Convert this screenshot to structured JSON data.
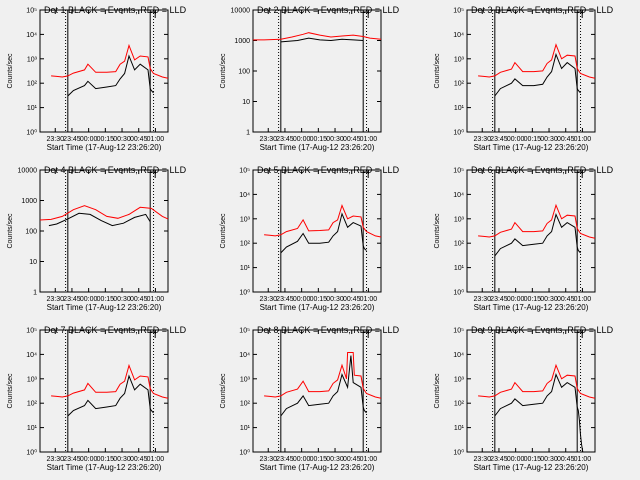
{
  "figure": {
    "background": "#f0f0f0",
    "x_tick_labels": [
      "23:30",
      "23:45",
      "00:00",
      "00:15",
      "00:30",
      "00:45",
      "01:00"
    ],
    "x_label": "Start Time (17-Aug-12 23:26:20)",
    "y_label": "Counts/sec",
    "series_colors": {
      "events": "#000000",
      "lld": "#ff0000"
    }
  },
  "chart_data": [
    {
      "type": "line",
      "title": "Det 1 BLACK = Events, RED = LLD",
      "yscale": "log",
      "ylim": [
        1,
        100000
      ],
      "y_tick_labels": [
        "10⁰",
        "10¹",
        "10²",
        "10³",
        "10⁴",
        "10⁵"
      ],
      "x_range_minutes": [
        -10,
        105
      ],
      "vlines_solid": [
        15,
        89
      ],
      "vlines_dotted": [
        13,
        92
      ],
      "series": [
        {
          "key": "events",
          "x": [
            15,
            20,
            30,
            33,
            40,
            50,
            58,
            62,
            66,
            70,
            75,
            80,
            87,
            89,
            90,
            92
          ],
          "y": [
            30,
            50,
            80,
            120,
            60,
            70,
            80,
            150,
            250,
            1300,
            350,
            600,
            350,
            60,
            50,
            40
          ]
        },
        {
          "key": "lld",
          "x": [
            0,
            5,
            10,
            15,
            20,
            30,
            33,
            40,
            50,
            58,
            62,
            66,
            70,
            75,
            80,
            87,
            89,
            92,
            100,
            105
          ],
          "y": [
            200,
            190,
            180,
            200,
            260,
            350,
            600,
            280,
            280,
            300,
            600,
            800,
            3500,
            900,
            1300,
            1200,
            400,
            250,
            180,
            160
          ]
        }
      ]
    },
    {
      "type": "line",
      "title": "Det 2 BLACK = Events, RED = LLD",
      "yscale": "log",
      "ylim": [
        1,
        10000
      ],
      "y_tick_labels": [
        "1",
        "10",
        "100",
        "1000",
        "10000"
      ],
      "x_range_minutes": [
        -10,
        105
      ],
      "vlines_solid": [
        15,
        89
      ],
      "vlines_dotted": [
        13,
        92
      ],
      "series": [
        {
          "key": "events",
          "x": [
            15,
            30,
            40,
            50,
            60,
            70,
            80,
            89
          ],
          "y": [
            900,
            1000,
            1200,
            1050,
            1000,
            1100,
            1050,
            1000
          ]
        },
        {
          "key": "lld",
          "x": [
            -10,
            0,
            15,
            25,
            35,
            40,
            50,
            60,
            70,
            80,
            89,
            95,
            105
          ],
          "y": [
            1050,
            1050,
            1100,
            1300,
            1600,
            1800,
            1500,
            1300,
            1400,
            1500,
            1350,
            1200,
            1100
          ]
        }
      ]
    },
    {
      "type": "line",
      "title": "Det 3 BLACK = Events, RED = LLD",
      "yscale": "log",
      "ylim": [
        1,
        100000
      ],
      "y_tick_labels": [
        "10⁰",
        "10¹",
        "10²",
        "10³",
        "10⁴",
        "10⁵"
      ],
      "x_range_minutes": [
        -10,
        105
      ],
      "vlines_solid": [
        15,
        89
      ],
      "vlines_dotted": [
        13,
        92
      ],
      "series": [
        {
          "key": "events",
          "x": [
            15,
            20,
            30,
            33,
            40,
            50,
            58,
            62,
            66,
            70,
            75,
            80,
            87,
            89,
            90,
            92
          ],
          "y": [
            30,
            60,
            100,
            150,
            80,
            80,
            90,
            180,
            300,
            1500,
            400,
            700,
            400,
            60,
            50,
            40
          ]
        },
        {
          "key": "lld",
          "x": [
            0,
            5,
            10,
            15,
            20,
            30,
            33,
            40,
            50,
            58,
            62,
            66,
            70,
            75,
            80,
            87,
            89,
            92,
            100,
            105
          ],
          "y": [
            200,
            190,
            180,
            200,
            280,
            380,
            700,
            300,
            300,
            320,
            650,
            900,
            3800,
            1000,
            1400,
            1300,
            400,
            250,
            180,
            160
          ]
        }
      ]
    },
    {
      "type": "line",
      "title": "Det 4 BLACK = Events, RED = LLD",
      "yscale": "log",
      "ylim": [
        1,
        10000
      ],
      "y_tick_labels": [
        "1",
        "10",
        "100",
        "1000",
        "10000"
      ],
      "x_range_minutes": [
        -10,
        105
      ],
      "vlines_solid": [
        15,
        89
      ],
      "vlines_dotted": [
        13,
        92
      ],
      "series": [
        {
          "key": "events",
          "x": [
            -2,
            5,
            15,
            25,
            35,
            45,
            55,
            65,
            75,
            85,
            89
          ],
          "y": [
            150,
            170,
            250,
            380,
            350,
            220,
            150,
            180,
            280,
            350,
            200
          ]
        },
        {
          "key": "lld",
          "x": [
            -10,
            0,
            10,
            20,
            30,
            40,
            50,
            60,
            70,
            80,
            90,
            100,
            105
          ],
          "y": [
            230,
            240,
            300,
            500,
            680,
            500,
            300,
            260,
            350,
            600,
            550,
            300,
            250
          ]
        }
      ]
    },
    {
      "type": "line",
      "title": "Det 5 BLACK = Events, RED = LLD",
      "yscale": "log",
      "ylim": [
        1,
        100000
      ],
      "y_tick_labels": [
        "10⁰",
        "10¹",
        "10²",
        "10³",
        "10⁴",
        "10⁵"
      ],
      "x_range_minutes": [
        -10,
        105
      ],
      "vlines_solid": [
        15,
        89
      ],
      "vlines_dotted": [
        13,
        92
      ],
      "series": [
        {
          "key": "events",
          "x": [
            15,
            20,
            30,
            35,
            40,
            50,
            58,
            62,
            66,
            70,
            75,
            80,
            87,
            89,
            90,
            92
          ],
          "y": [
            40,
            70,
            120,
            250,
            100,
            100,
            110,
            200,
            300,
            1600,
            450,
            700,
            500,
            80,
            60,
            50
          ]
        },
        {
          "key": "lld",
          "x": [
            0,
            5,
            10,
            15,
            20,
            30,
            35,
            40,
            50,
            58,
            62,
            66,
            70,
            75,
            80,
            87,
            89,
            92,
            100,
            105
          ],
          "y": [
            220,
            210,
            200,
            220,
            300,
            400,
            900,
            320,
            330,
            350,
            700,
            900,
            3500,
            1000,
            1300,
            1200,
            450,
            300,
            200,
            180
          ]
        }
      ]
    },
    {
      "type": "line",
      "title": "Det 6 BLACK = Events, RED = LLD",
      "yscale": "log",
      "ylim": [
        1,
        100000
      ],
      "y_tick_labels": [
        "10⁰",
        "10¹",
        "10²",
        "10³",
        "10⁴",
        "10⁵"
      ],
      "x_range_minutes": [
        -10,
        105
      ],
      "vlines_solid": [
        15,
        89
      ],
      "vlines_dotted": [
        13,
        92
      ],
      "series": [
        {
          "key": "events",
          "x": [
            15,
            20,
            30,
            33,
            40,
            50,
            58,
            62,
            66,
            70,
            75,
            80,
            87,
            89,
            90,
            92
          ],
          "y": [
            30,
            60,
            100,
            150,
            80,
            90,
            100,
            200,
            300,
            1500,
            450,
            700,
            450,
            70,
            50,
            40
          ]
        },
        {
          "key": "lld",
          "x": [
            0,
            5,
            10,
            15,
            20,
            30,
            33,
            40,
            50,
            58,
            62,
            66,
            70,
            75,
            80,
            87,
            89,
            92,
            100,
            105
          ],
          "y": [
            200,
            190,
            180,
            200,
            280,
            380,
            700,
            300,
            300,
            320,
            650,
            900,
            3600,
            1000,
            1400,
            1300,
            400,
            250,
            180,
            160
          ]
        }
      ]
    },
    {
      "type": "line",
      "title": "Det 7 BLACK = Events, RED = LLD",
      "yscale": "log",
      "ylim": [
        1,
        100000
      ],
      "y_tick_labels": [
        "10⁰",
        "10¹",
        "10²",
        "10³",
        "10⁴",
        "10⁵"
      ],
      "x_range_minutes": [
        -10,
        105
      ],
      "vlines_solid": [
        15,
        89
      ],
      "vlines_dotted": [
        13,
        92
      ],
      "series": [
        {
          "key": "events",
          "x": [
            15,
            20,
            30,
            33,
            40,
            50,
            58,
            62,
            66,
            70,
            75,
            80,
            87,
            89,
            90,
            92
          ],
          "y": [
            30,
            50,
            80,
            130,
            60,
            70,
            80,
            160,
            250,
            1300,
            350,
            600,
            350,
            60,
            50,
            40
          ]
        },
        {
          "key": "lld",
          "x": [
            0,
            5,
            10,
            15,
            20,
            30,
            33,
            40,
            50,
            58,
            62,
            66,
            70,
            75,
            80,
            87,
            89,
            92,
            100,
            105
          ],
          "y": [
            200,
            190,
            180,
            200,
            260,
            350,
            650,
            280,
            280,
            300,
            600,
            800,
            3500,
            900,
            1300,
            1200,
            400,
            250,
            180,
            160
          ]
        }
      ]
    },
    {
      "type": "line",
      "title": "Det 8 BLACK = Events, RED = LLD",
      "yscale": "log",
      "ylim": [
        1,
        100000
      ],
      "y_tick_labels": [
        "10⁰",
        "10¹",
        "10²",
        "10³",
        "10⁴",
        "10⁵"
      ],
      "x_range_minutes": [
        -10,
        105
      ],
      "vlines_solid": [
        15,
        89
      ],
      "vlines_dotted": [
        13,
        92
      ],
      "series": [
        {
          "key": "events",
          "x": [
            15,
            20,
            30,
            35,
            40,
            50,
            58,
            62,
            66,
            70,
            75,
            78,
            80,
            87,
            89,
            90,
            92
          ],
          "y": [
            30,
            60,
            100,
            200,
            80,
            90,
            100,
            200,
            300,
            1500,
            450,
            9000,
            700,
            450,
            70,
            50,
            40
          ]
        },
        {
          "key": "lld",
          "x": [
            0,
            5,
            10,
            15,
            20,
            30,
            35,
            40,
            50,
            58,
            62,
            66,
            70,
            74,
            75,
            80,
            81,
            87,
            89,
            92,
            100,
            105
          ],
          "y": [
            200,
            190,
            180,
            200,
            280,
            380,
            800,
            300,
            300,
            320,
            650,
            900,
            3600,
            1000,
            12000,
            12000,
            1400,
            1300,
            400,
            250,
            180,
            160
          ]
        }
      ]
    },
    {
      "type": "line",
      "title": "Det 9 BLACK = Events, RED = LLD",
      "yscale": "log",
      "ylim": [
        1,
        100000
      ],
      "y_tick_labels": [
        "10⁰",
        "10¹",
        "10²",
        "10³",
        "10⁴",
        "10⁵"
      ],
      "x_range_minutes": [
        -10,
        105
      ],
      "vlines_solid": [
        15,
        89
      ],
      "vlines_dotted": [
        13,
        92
      ],
      "series": [
        {
          "key": "events",
          "x": [
            15,
            20,
            30,
            33,
            40,
            50,
            58,
            62,
            66,
            70,
            75,
            80,
            87,
            89,
            90,
            91,
            92,
            93,
            94
          ],
          "y": [
            30,
            60,
            100,
            150,
            80,
            90,
            100,
            200,
            300,
            1500,
            450,
            700,
            450,
            70,
            50,
            20,
            5,
            2,
            1
          ]
        },
        {
          "key": "lld",
          "x": [
            0,
            5,
            10,
            15,
            20,
            30,
            33,
            40,
            50,
            58,
            62,
            66,
            70,
            75,
            80,
            87,
            89,
            92,
            100,
            105
          ],
          "y": [
            200,
            190,
            180,
            200,
            280,
            380,
            700,
            300,
            300,
            320,
            650,
            900,
            3600,
            1000,
            1400,
            1300,
            400,
            250,
            180,
            160
          ]
        }
      ]
    }
  ]
}
